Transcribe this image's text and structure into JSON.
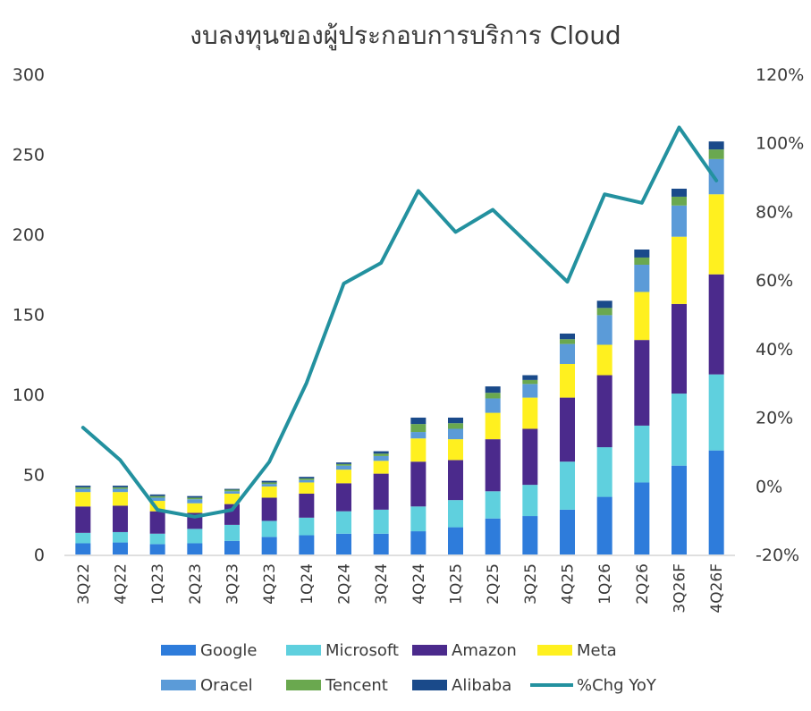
{
  "chart_data": {
    "type": "bar",
    "stacked": true,
    "title": "งบลงทุนของผู้ประกอบการบริการ Cloud",
    "categories": [
      "3Q22",
      "4Q22",
      "1Q23",
      "2Q23",
      "3Q23",
      "4Q23",
      "1Q24",
      "2Q24",
      "3Q24",
      "4Q24",
      "1Q25",
      "2Q25",
      "3Q25",
      "4Q25",
      "1Q26",
      "2Q26",
      "3Q26F",
      "4Q26F"
    ],
    "series": [
      {
        "name": "Google",
        "type": "bar",
        "color": "#2E7CDB",
        "values": [
          7,
          7.5,
          6.5,
          7,
          8.5,
          11,
          12,
          13,
          13,
          14.5,
          17,
          22.5,
          24,
          28,
          36,
          45,
          55.5,
          65
        ]
      },
      {
        "name": "Microsoft",
        "type": "bar",
        "color": "#5FD0DE",
        "values": [
          6.5,
          6.5,
          6.5,
          9,
          10,
          10,
          11,
          14,
          15,
          15.5,
          17,
          17,
          19.5,
          30,
          31,
          35.5,
          45,
          47.5
        ]
      },
      {
        "name": "Amazon",
        "type": "bar",
        "color": "#4B2A8C",
        "values": [
          16.5,
          16.5,
          14,
          10,
          13,
          14.5,
          15,
          17.5,
          22.5,
          28,
          25,
          32.5,
          35,
          40,
          45,
          53.5,
          56,
          62.5
        ]
      },
      {
        "name": "Meta",
        "type": "bar",
        "color": "#FFF01F",
        "values": [
          9,
          8.5,
          6.5,
          6,
          6.5,
          7,
          7,
          8.5,
          8,
          14.5,
          13,
          16.5,
          19.5,
          21,
          19,
          30,
          42,
          50
        ]
      },
      {
        "name": "Oracel",
        "type": "bar",
        "color": "#5B9BD8",
        "values": [
          2,
          2,
          2,
          2.5,
          1.5,
          1.5,
          1.5,
          2.5,
          3,
          4,
          6.5,
          9,
          8.5,
          12.5,
          18.5,
          17,
          19.5,
          22
        ]
      },
      {
        "name": "Tencent",
        "type": "bar",
        "color": "#6AA84F",
        "values": [
          1,
          1,
          1,
          1,
          1,
          1,
          1,
          1,
          1.5,
          5,
          3.5,
          3.5,
          2.5,
          3,
          4.5,
          4.5,
          5.5,
          6
        ]
      },
      {
        "name": "Alibaba",
        "type": "bar",
        "color": "#1A4A8A",
        "values": [
          1,
          1,
          1,
          1,
          0.5,
          1,
          1,
          1,
          1.5,
          4,
          3.5,
          4,
          3,
          3.5,
          4.5,
          5,
          5,
          5
        ]
      },
      {
        "name": "%Chg YoY",
        "type": "line",
        "axis": "right",
        "color": "#23919F",
        "values": [
          17,
          7.5,
          -7,
          -9,
          -7,
          7,
          30,
          59,
          65,
          86,
          74,
          80.5,
          70,
          59.5,
          85,
          82.5,
          104.5,
          89
        ]
      }
    ],
    "y_left": {
      "min": 0,
      "max": 300,
      "ticks": [
        0,
        50,
        100,
        150,
        200,
        250,
        300
      ],
      "tick_labels": [
        "0",
        "50",
        "100",
        "150",
        "200",
        "250",
        "300"
      ]
    },
    "y_right": {
      "min": -20,
      "max": 120,
      "ticks": [
        -20,
        0,
        20,
        40,
        60,
        80,
        100,
        120
      ],
      "tick_labels": [
        "-20%",
        "0%",
        "20%",
        "40%",
        "60%",
        "80%",
        "100%",
        "120%"
      ]
    },
    "grid": false,
    "legend_position": "bottom"
  }
}
